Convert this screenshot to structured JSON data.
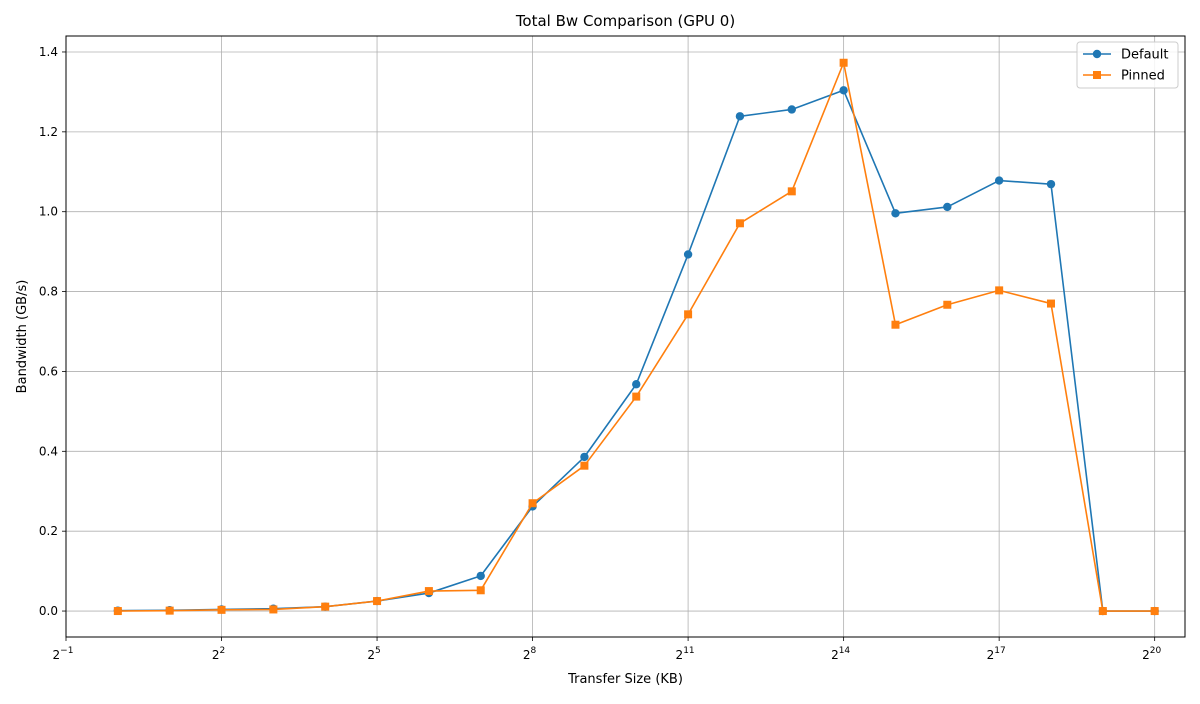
{
  "chart_data": {
    "type": "line",
    "title": "Total Bw Comparison (GPU 0)",
    "xlabel": "Transfer Size (KB)",
    "ylabel": "Bandwidth (GB/s)",
    "x_scale": "log2",
    "xlim": [
      0.5,
      1572864
    ],
    "ylim": [
      -0.065,
      1.44
    ],
    "grid": true,
    "legend_position": "top-right",
    "x_ticks": [
      {
        "value": 0.5,
        "base": "2",
        "exp": "−1"
      },
      {
        "value": 4,
        "base": "2",
        "exp": "2"
      },
      {
        "value": 32,
        "base": "2",
        "exp": "5"
      },
      {
        "value": 256,
        "base": "2",
        "exp": "8"
      },
      {
        "value": 2048,
        "base": "2",
        "exp": "11"
      },
      {
        "value": 16384,
        "base": "2",
        "exp": "14"
      },
      {
        "value": 131072,
        "base": "2",
        "exp": "17"
      },
      {
        "value": 1048576,
        "base": "2",
        "exp": "20"
      }
    ],
    "y_ticks": [
      {
        "value": 0.0,
        "label": "0.0"
      },
      {
        "value": 0.2,
        "label": "0.2"
      },
      {
        "value": 0.4,
        "label": "0.4"
      },
      {
        "value": 0.6,
        "label": "0.6"
      },
      {
        "value": 0.8,
        "label": "0.8"
      },
      {
        "value": 1.0,
        "label": "1.0"
      },
      {
        "value": 1.2,
        "label": "1.2"
      },
      {
        "value": 1.4,
        "label": "1.4"
      }
    ],
    "x": [
      1,
      2,
      4,
      8,
      16,
      32,
      64,
      128,
      256,
      512,
      1024,
      2048,
      4096,
      8192,
      16384,
      32768,
      65536,
      131072,
      262144,
      524288,
      1048576
    ],
    "series": [
      {
        "name": "Default",
        "color": "#1f77b4",
        "marker": "circle",
        "values": [
          0.001,
          0.002,
          0.004,
          0.006,
          0.011,
          0.025,
          0.045,
          0.088,
          0.262,
          0.386,
          0.568,
          0.893,
          1.239,
          1.256,
          1.304,
          0.996,
          1.012,
          1.078,
          1.069,
          0.0,
          0.0
        ]
      },
      {
        "name": "Pinned",
        "color": "#ff7f0e",
        "marker": "square",
        "values": [
          0.0,
          0.001,
          0.003,
          0.004,
          0.011,
          0.025,
          0.05,
          0.052,
          0.27,
          0.364,
          0.537,
          0.743,
          0.971,
          1.051,
          1.373,
          0.717,
          0.767,
          0.803,
          0.77,
          0.0,
          0.0
        ]
      }
    ]
  }
}
